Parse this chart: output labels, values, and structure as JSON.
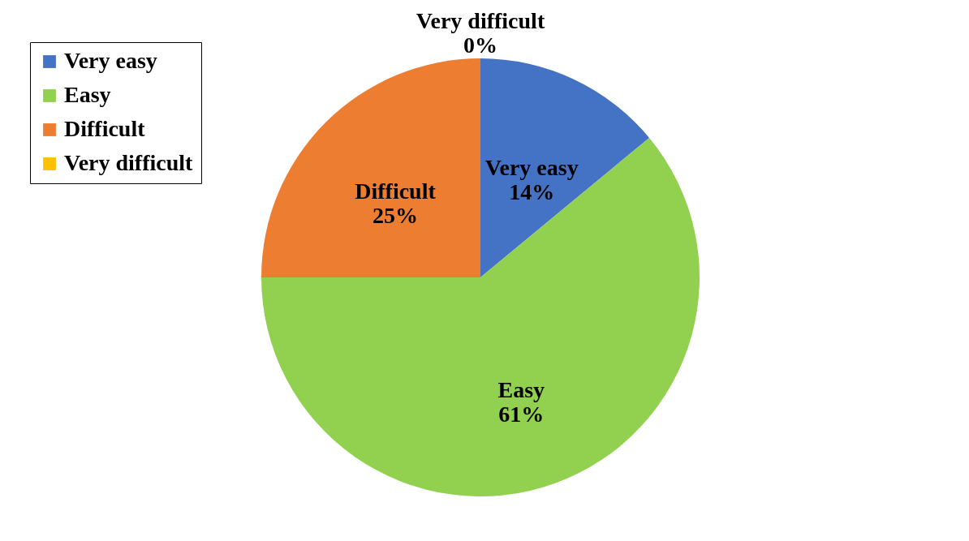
{
  "chart_data": {
    "type": "pie",
    "categories": [
      "Very easy",
      "Easy",
      "Difficult",
      "Very difficult"
    ],
    "values": [
      14,
      61,
      25,
      0
    ],
    "colors": [
      "#4472c4",
      "#92d050",
      "#ed7d31",
      "#ffc000"
    ],
    "value_labels": [
      "14%",
      "61%",
      "25%",
      "0%"
    ],
    "legend": "top left"
  }
}
